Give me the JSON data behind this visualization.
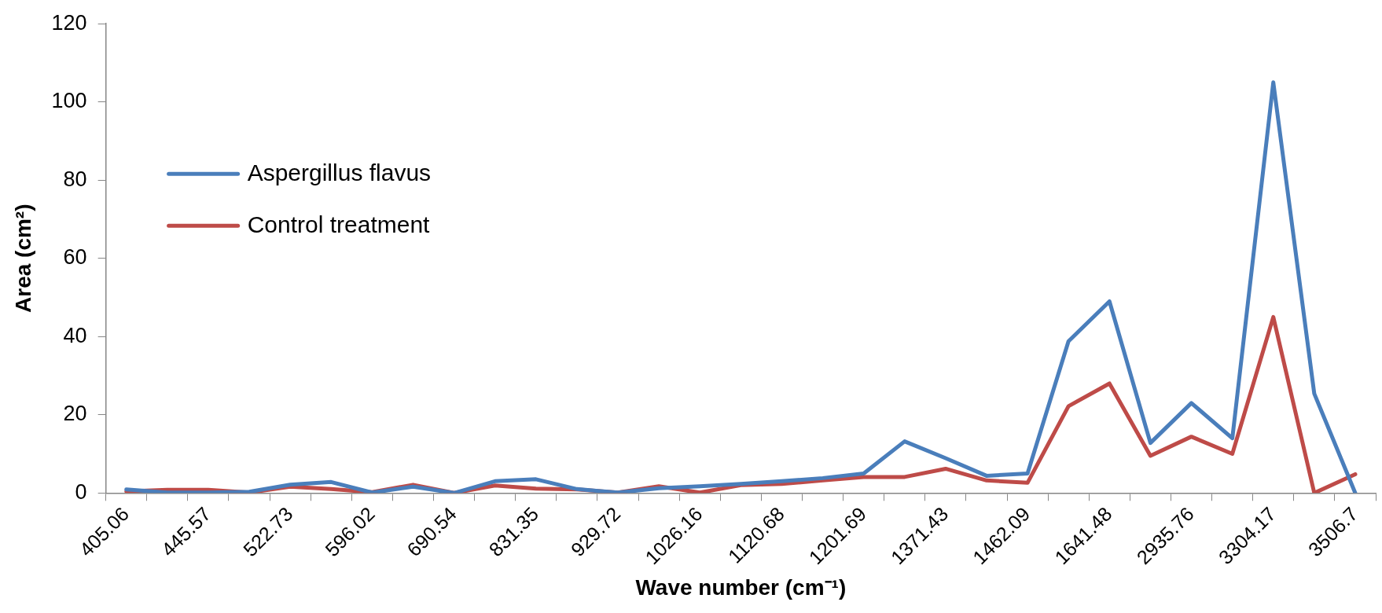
{
  "chart_data": {
    "type": "line",
    "xlabel": "Wave number (cm⁻¹)",
    "ylabel": "Area (cm²)",
    "categories": [
      "405.06",
      null,
      "445.57",
      null,
      "522.73",
      null,
      "596.02",
      null,
      "690.54",
      null,
      "831.35",
      null,
      "929.72",
      null,
      "1026.16",
      null,
      "1120.68",
      null,
      "1201.69",
      null,
      "1371.43",
      null,
      "1462.09",
      null,
      "1641.48",
      null,
      "2935.76",
      null,
      "3304.17",
      null,
      "3506.7"
    ],
    "series": [
      {
        "name": "Aspergillus flavus",
        "color": "#4a7ebb",
        "values": [
          0.9,
          0.1,
          0.1,
          0.3,
          2.1,
          2.8,
          0.1,
          1.6,
          0,
          3.0,
          3.5,
          1.0,
          0.1,
          1.2,
          1.7,
          2.3,
          3.0,
          3.8,
          5.0,
          13.2,
          8.9,
          4.4,
          5.0,
          38.8,
          49,
          12.8,
          23,
          14,
          105,
          25.4,
          0
        ]
      },
      {
        "name": "Control treatment",
        "color": "#be4b48",
        "values": [
          0.4,
          0.8,
          0.8,
          0.1,
          1.6,
          1.0,
          0.2,
          2.1,
          0,
          1.9,
          1.1,
          0.9,
          0.1,
          1.7,
          0.1,
          2.0,
          2.3,
          3.2,
          4.1,
          4.1,
          6.2,
          3.2,
          2.6,
          22.2,
          28,
          9.5,
          14.4,
          10,
          45,
          0,
          4.8
        ]
      }
    ],
    "ylim": [
      0,
      120
    ],
    "yticks": [
      0,
      20,
      40,
      60,
      80,
      100,
      120
    ],
    "grid": false,
    "legend": "left",
    "marker": "none",
    "line_style": "solid"
  }
}
